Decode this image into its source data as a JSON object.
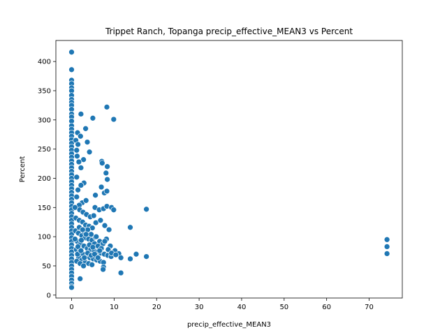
{
  "chart_data": {
    "type": "scatter",
    "title": "Trippet Ranch, Topanga precip_effective_MEAN3 vs Percent",
    "xlabel": "precip_effective_MEAN3",
    "ylabel": "Percent",
    "xlim": [
      -3.7,
      77.8
    ],
    "ylim": [
      -5,
      436
    ],
    "xticks": [
      0,
      10,
      20,
      30,
      40,
      50,
      60,
      70
    ],
    "yticks": [
      0,
      50,
      100,
      150,
      200,
      250,
      300,
      350,
      400
    ],
    "grid": false,
    "legend": "none",
    "marker_color": "#1f77b4",
    "zero_column_points": [
      [
        0,
        416
      ],
      [
        0,
        386
      ],
      [
        0,
        368
      ],
      [
        0,
        362
      ],
      [
        0,
        355
      ],
      [
        0,
        350
      ],
      [
        0,
        342
      ],
      [
        0,
        335
      ],
      [
        0,
        330
      ],
      [
        0,
        325
      ],
      [
        0,
        318
      ],
      [
        0,
        310
      ],
      [
        0,
        305
      ],
      [
        0,
        298
      ],
      [
        0,
        290
      ],
      [
        0,
        284
      ],
      [
        0,
        278
      ],
      [
        0,
        272
      ],
      [
        0,
        266
      ],
      [
        0,
        260
      ],
      [
        0,
        254
      ],
      [
        0,
        248
      ],
      [
        0,
        242
      ],
      [
        0,
        236
      ],
      [
        0,
        230
      ],
      [
        0,
        224
      ],
      [
        0,
        218
      ],
      [
        0,
        212
      ],
      [
        0,
        206
      ],
      [
        0,
        200
      ],
      [
        0,
        194
      ],
      [
        0,
        188
      ],
      [
        0,
        182
      ],
      [
        0,
        176
      ],
      [
        0,
        170
      ],
      [
        0,
        164
      ],
      [
        0,
        158
      ],
      [
        0,
        152
      ],
      [
        0,
        146
      ],
      [
        0,
        140
      ],
      [
        0,
        134
      ],
      [
        0,
        128
      ],
      [
        0,
        122
      ],
      [
        0,
        116
      ],
      [
        0,
        110
      ],
      [
        0,
        104
      ],
      [
        0,
        98
      ],
      [
        0,
        92
      ],
      [
        0,
        86
      ],
      [
        0,
        80
      ],
      [
        0,
        74
      ],
      [
        0,
        68
      ],
      [
        0,
        62
      ],
      [
        0,
        56
      ],
      [
        0,
        50
      ],
      [
        0,
        44
      ],
      [
        0,
        38
      ],
      [
        0,
        32
      ],
      [
        0,
        26
      ],
      [
        0,
        20
      ],
      [
        0,
        15
      ],
      [
        0,
        13
      ]
    ],
    "points": [
      [
        2.2,
        310
      ],
      [
        3.3,
        285
      ],
      [
        5,
        303
      ],
      [
        9.9,
        301
      ],
      [
        8.3,
        322
      ],
      [
        1.4,
        278
      ],
      [
        2.1,
        272
      ],
      [
        1,
        265
      ],
      [
        3.7,
        262
      ],
      [
        4.2,
        245
      ],
      [
        1.5,
        258
      ],
      [
        1.2,
        248
      ],
      [
        2.8,
        232
      ],
      [
        1.7,
        228
      ],
      [
        1.3,
        238
      ],
      [
        2.2,
        218
      ],
      [
        7.1,
        229
      ],
      [
        7.2,
        226
      ],
      [
        8.4,
        220
      ],
      [
        8.1,
        209
      ],
      [
        8.4,
        198
      ],
      [
        1.2,
        202
      ],
      [
        2.9,
        192
      ],
      [
        2.2,
        188
      ],
      [
        1.5,
        180
      ],
      [
        7,
        185
      ],
      [
        7.7,
        175
      ],
      [
        8.3,
        178
      ],
      [
        1.2,
        168
      ],
      [
        2.5,
        158
      ],
      [
        3.4,
        162
      ],
      [
        1.8,
        154
      ],
      [
        5.6,
        171
      ],
      [
        0.8,
        150
      ],
      [
        1.9,
        146
      ],
      [
        2.7,
        142
      ],
      [
        3.5,
        138
      ],
      [
        4.4,
        134
      ],
      [
        5.5,
        150
      ],
      [
        6.5,
        146
      ],
      [
        7.5,
        148
      ],
      [
        8.3,
        152
      ],
      [
        9.4,
        150
      ],
      [
        9.9,
        146
      ],
      [
        17.6,
        147
      ],
      [
        5.2,
        136
      ],
      [
        1,
        132
      ],
      [
        1.8,
        128
      ],
      [
        2.6,
        125
      ],
      [
        3.3,
        120
      ],
      [
        4.1,
        118
      ],
      [
        4.9,
        115
      ],
      [
        5.7,
        124
      ],
      [
        6.8,
        128
      ],
      [
        7.8,
        119
      ],
      [
        8.8,
        112
      ],
      [
        13.8,
        116
      ],
      [
        0.9,
        110
      ],
      [
        1.6,
        106
      ],
      [
        2.4,
        102
      ],
      [
        3.2,
        98
      ],
      [
        4,
        96
      ],
      [
        4.8,
        94
      ],
      [
        5.6,
        99
      ],
      [
        6.6,
        92
      ],
      [
        7.4,
        88
      ],
      [
        8.2,
        96
      ],
      [
        9.1,
        84
      ],
      [
        10.2,
        76
      ],
      [
        11.1,
        71
      ],
      [
        11.6,
        64
      ],
      [
        13.8,
        62
      ],
      [
        15.2,
        70
      ],
      [
        17.6,
        66
      ],
      [
        1.3,
        92
      ],
      [
        2.1,
        88
      ],
      [
        2.9,
        84
      ],
      [
        3.7,
        80
      ],
      [
        4.5,
        78
      ],
      [
        5.3,
        76
      ],
      [
        6.1,
        74
      ],
      [
        6.9,
        72
      ],
      [
        7.7,
        70
      ],
      [
        8.5,
        68
      ],
      [
        9.3,
        66
      ],
      [
        1.1,
        78
      ],
      [
        1.9,
        74
      ],
      [
        2.7,
        70
      ],
      [
        3.5,
        66
      ],
      [
        4.3,
        64
      ],
      [
        5.1,
        62
      ],
      [
        5.9,
        60
      ],
      [
        6.7,
        58
      ],
      [
        7.5,
        56
      ],
      [
        1.6,
        66
      ],
      [
        2.4,
        60
      ],
      [
        3.2,
        56
      ],
      [
        4,
        54
      ],
      [
        4.8,
        52
      ],
      [
        1.2,
        58
      ],
      [
        2,
        54
      ],
      [
        2.8,
        50
      ],
      [
        7.5,
        48
      ],
      [
        7.4,
        44
      ],
      [
        11.6,
        38
      ],
      [
        2,
        28
      ],
      [
        0.8,
        96
      ],
      [
        1.5,
        83
      ],
      [
        2.3,
        94
      ],
      [
        3,
        108
      ],
      [
        3.8,
        112
      ],
      [
        4.6,
        104
      ],
      [
        5.4,
        88
      ],
      [
        6.2,
        84
      ],
      [
        7,
        80
      ],
      [
        7.8,
        92
      ],
      [
        8.6,
        78
      ],
      [
        9.4,
        72
      ],
      [
        1.8,
        116
      ],
      [
        2.6,
        112
      ],
      [
        3.4,
        104
      ],
      [
        4.2,
        86
      ],
      [
        5,
        82
      ],
      [
        5.8,
        100
      ],
      [
        6.6,
        76
      ],
      [
        1.4,
        70
      ],
      [
        2.2,
        76
      ],
      [
        3,
        64
      ],
      [
        3.8,
        72
      ],
      [
        4.6,
        68
      ],
      [
        5.4,
        70
      ],
      [
        6.2,
        64
      ],
      [
        10.4,
        69
      ],
      [
        74.2,
        95
      ],
      [
        74.2,
        83
      ],
      [
        74.2,
        71
      ]
    ]
  }
}
